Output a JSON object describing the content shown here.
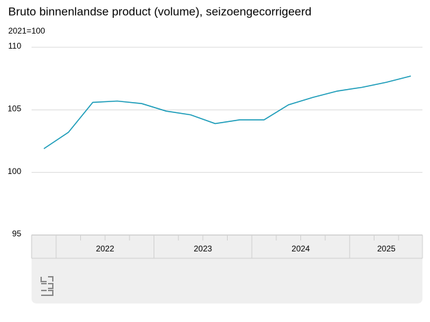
{
  "chart_data": {
    "type": "line",
    "title": "Bruto binnenlandse product (volume), seizoengecorrigeerd",
    "subtitle": "2021=100",
    "categories": [
      null,
      "2022",
      "2022",
      "2022",
      "2022",
      "2023",
      "2023",
      "2023",
      "2023",
      "2024",
      "2024",
      "2024",
      "2024",
      "2025",
      "2025",
      "2025"
    ],
    "values": [
      101.9,
      103.2,
      105.6,
      105.7,
      105.5,
      104.9,
      104.6,
      103.9,
      104.2,
      104.2,
      105.4,
      106.0,
      106.5,
      106.8,
      107.2,
      107.7
    ],
    "color": "#1a9bb8",
    "ylim": [
      95,
      110
    ],
    "yticks": [
      95,
      100,
      105,
      110
    ],
    "grid": true
  }
}
